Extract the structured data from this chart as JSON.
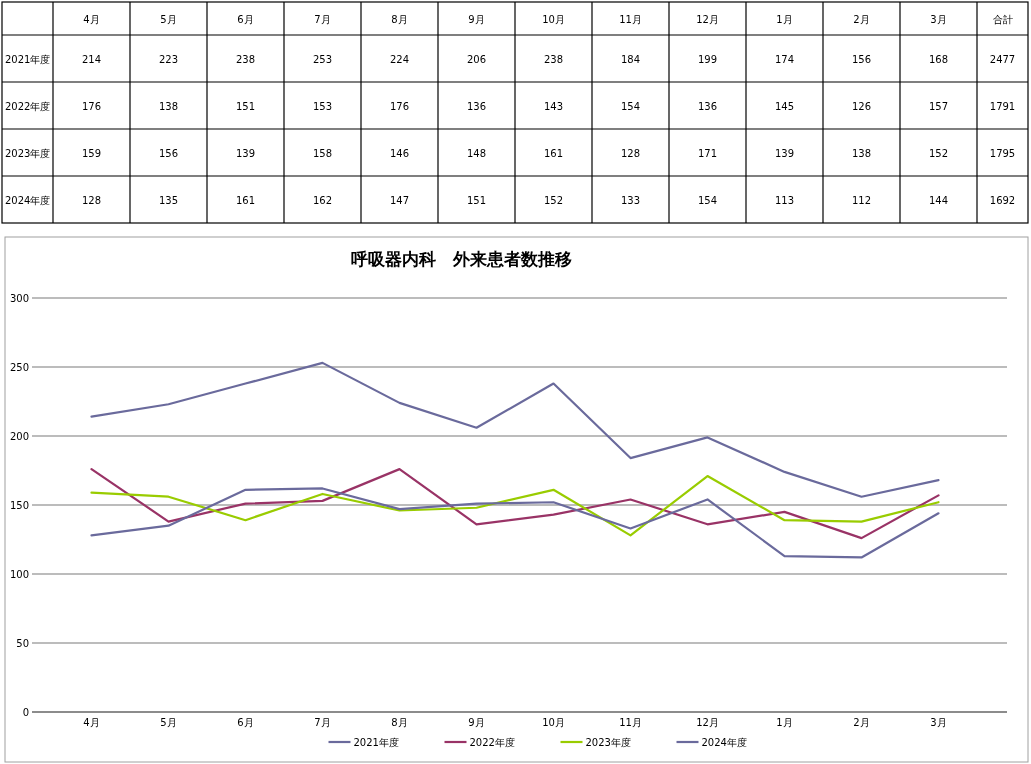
{
  "chart_data": {
    "type": "line",
    "title": "呼吸器内科　外来患者数推移",
    "categories": [
      "4月",
      "5月",
      "6月",
      "7月",
      "8月",
      "9月",
      "10月",
      "11月",
      "12月",
      "1月",
      "2月",
      "3月"
    ],
    "series": [
      {
        "name": "2021年度",
        "color": "#6a6a9c",
        "values": [
          214,
          223,
          238,
          253,
          224,
          206,
          238,
          184,
          199,
          174,
          156,
          168
        ],
        "value_labels": [
          "214",
          "223",
          "238",
          "253",
          "224",
          "206",
          "238",
          "184",
          "199",
          "174",
          "156",
          "168"
        ]
      },
      {
        "name": "2022年度",
        "color": "#993366",
        "values": [
          176,
          138,
          151,
          153,
          176,
          136,
          143,
          154,
          136,
          145,
          126,
          157
        ],
        "value_labels": [
          "176",
          "138",
          "151",
          "153",
          "176",
          "136",
          "143",
          "154",
          "136",
          "145",
          "126",
          "157"
        ]
      },
      {
        "name": "2023年度",
        "color": "#99cc00",
        "values": [
          159,
          156,
          139,
          158,
          146,
          148,
          161,
          128,
          171,
          139,
          138,
          152
        ],
        "value_labels": [
          "159",
          "156",
          "139",
          "158",
          "146",
          "148",
          "161",
          "128",
          "171",
          "139",
          "138",
          "152"
        ]
      },
      {
        "name": "2024年度",
        "color": "#6a6a9c",
        "values": [
          128,
          135,
          161,
          162,
          147,
          151,
          152,
          133,
          154,
          113,
          112,
          144
        ],
        "value_labels": [
          "128",
          "135",
          "161",
          "162",
          "147",
          "151",
          "152",
          "133",
          "154",
          "113",
          "112",
          "144"
        ]
      }
    ],
    "ylim": [
      0,
      300
    ],
    "yticks": [
      0,
      50,
      100,
      150,
      200,
      250,
      300
    ],
    "grid": "y",
    "legend": "bottom",
    "totals": [
      "2477",
      "1791",
      "1795",
      "1692"
    ],
    "annotations": [
      "合計"
    ]
  }
}
